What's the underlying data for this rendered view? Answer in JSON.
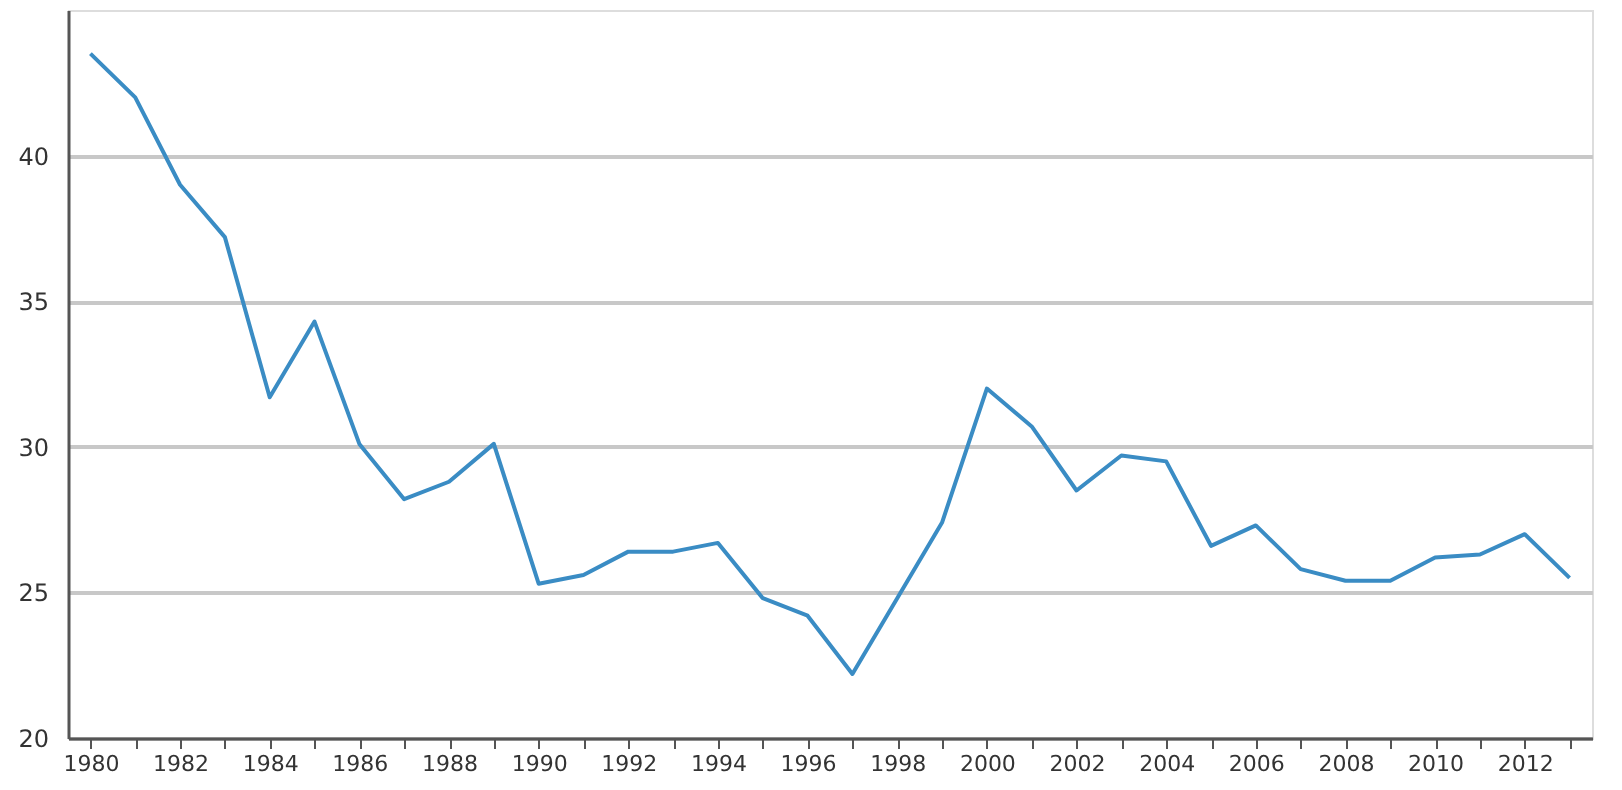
{
  "chart_data": {
    "type": "line",
    "categories": [
      "1980",
      null,
      "1982",
      null,
      "1984",
      null,
      "1986",
      null,
      "1988",
      null,
      "1990",
      null,
      "1992",
      null,
      "1994",
      null,
      "1996",
      null,
      "1998",
      null,
      "2000",
      null,
      "2002",
      null,
      "2004",
      null,
      "2006",
      null,
      "2008",
      null,
      "2010",
      null,
      "2012",
      null
    ],
    "series": [
      {
        "color": "#3a8cc4",
        "values": [
          43.5,
          42,
          39,
          37.2,
          31.7,
          34.3,
          30.1,
          28.2,
          28.8,
          30.1,
          25.3,
          25.6,
          26.4,
          26.4,
          26.7,
          24.8,
          24.2,
          22.2,
          24.8,
          27.4,
          32,
          30.7,
          28.5,
          29.7,
          29.5,
          26.6,
          27.3,
          25.8,
          25.4,
          25.4,
          26.2,
          26.3,
          27,
          25.5
        ]
      }
    ],
    "ylim": [
      20,
      45
    ],
    "yticks": [
      20,
      25,
      30,
      35,
      40
    ],
    "grid": "y",
    "marker": "none",
    "line_style": "solid"
  }
}
